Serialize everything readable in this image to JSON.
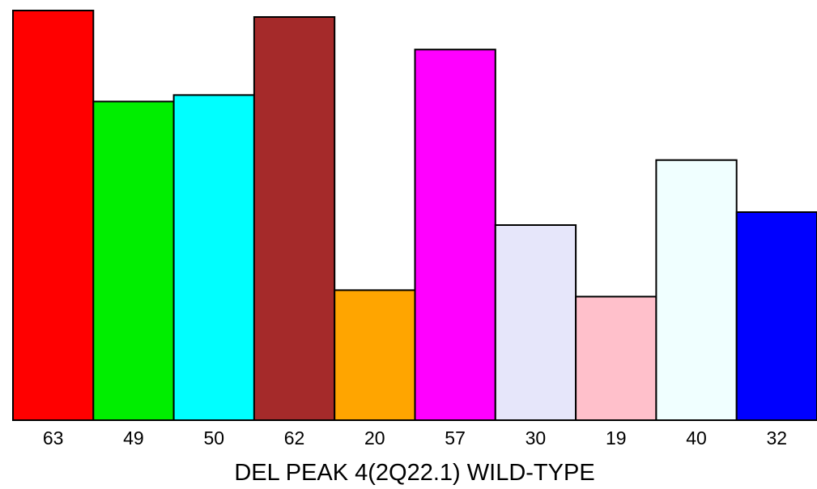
{
  "chart_data": {
    "type": "bar",
    "title": "",
    "xlabel": "DEL PEAK  4(2Q22.1) WILD-TYPE",
    "ylabel": "",
    "categories": [
      "63",
      "49",
      "50",
      "62",
      "20",
      "57",
      "30",
      "19",
      "40",
      "32"
    ],
    "values": [
      63,
      49,
      50,
      62,
      20,
      57,
      30,
      19,
      40,
      32
    ],
    "colors": [
      "#ff0000",
      "#00ee00",
      "#00ffff",
      "#a52a2a",
      "#ffa500",
      "#ff00ff",
      "#e6e6fa",
      "#ffc0cb",
      "#f0ffff",
      "#0000ff"
    ],
    "ylim": [
      0,
      63
    ],
    "grid": false,
    "legend": "none"
  }
}
